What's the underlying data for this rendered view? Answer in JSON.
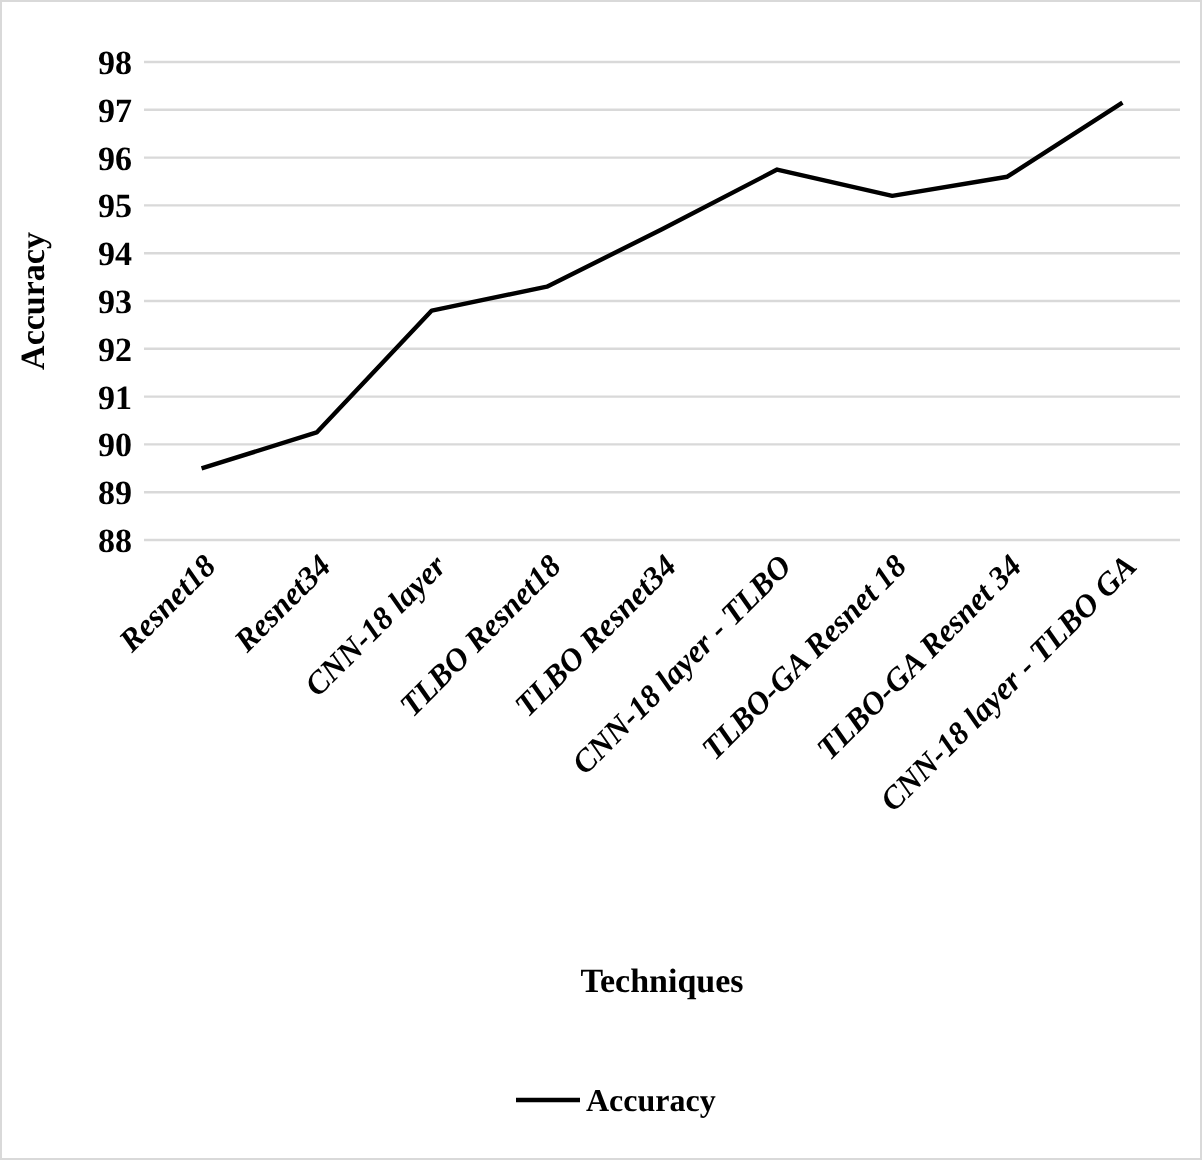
{
  "chart_data": {
    "type": "line",
    "xlabel": "Techniques",
    "ylabel": "Accuracy",
    "categories": [
      "Resnet18",
      "Resnet34",
      "CNN-18 layer",
      "TLBO Resnet18",
      "TLBO Resnet34",
      "CNN-18 layer - TLBO",
      "TLBO-GA Resnet 18",
      "TLBO-GA Resnet 34",
      "CNN-18 layer - TLBO GA"
    ],
    "series": [
      {
        "name": "Accuracy",
        "color": "#000000",
        "values": [
          89.5,
          90.25,
          92.8,
          93.3,
          94.5,
          95.75,
          95.2,
          95.6,
          97.15
        ]
      }
    ],
    "ylim": [
      88,
      98
    ],
    "yticks": [
      88,
      89,
      90,
      91,
      92,
      93,
      94,
      95,
      96,
      97,
      98
    ],
    "grid": "y",
    "legend": "bottom",
    "marker": "none",
    "line_style": "solid"
  }
}
